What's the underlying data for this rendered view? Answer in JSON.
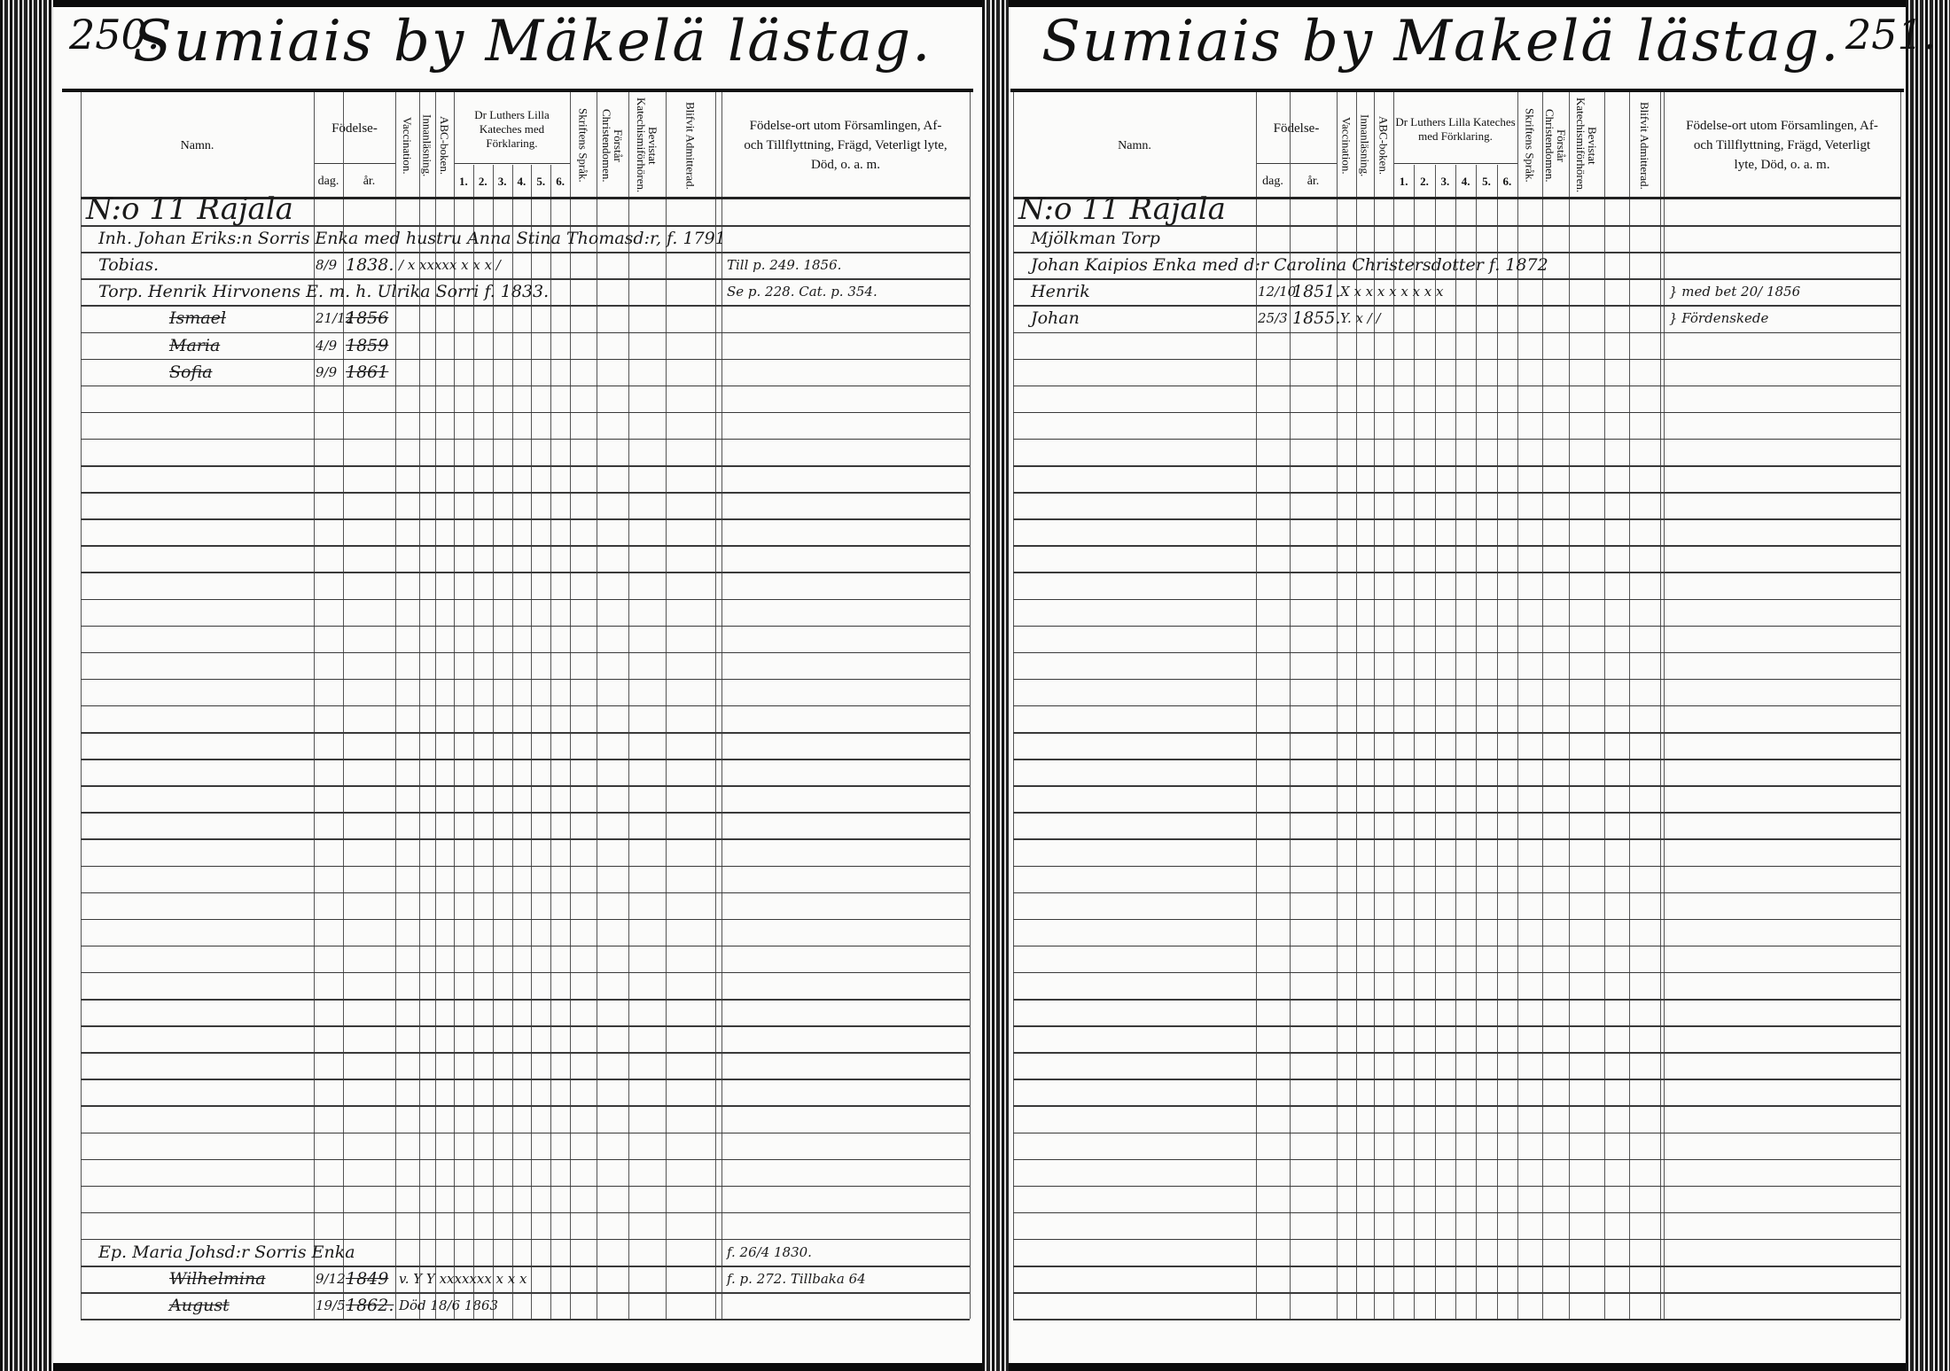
{
  "left_page": {
    "page_number": "250.",
    "title": "Sumiais by Mäkelä lästag.",
    "headers": {
      "namn": "Namn.",
      "fodelse": "Födelse-",
      "dag": "dag.",
      "ar": "år.",
      "vaccination": "Vaccination.",
      "innanlasning": "Innanläsning.",
      "abc": "ABC-boken.",
      "katekes": "Dr Luthers Lilla Kateches med Förklaring.",
      "kat_nums": [
        "1.",
        "2.",
        "3.",
        "4.",
        "5.",
        "6."
      ],
      "skriftens": "Skriftens Språk.",
      "forstar": "Förstår Christendomen.",
      "bevistat": "Bevistat Katechismiförhören.",
      "blifvit": "Blifvit Admitterad.",
      "fodelseort": "Födelse-ort utom Församlingen, Af- och Tillflyttning, Frägd, Veterligt lyte, Död, o. a. m."
    },
    "rows": [
      {
        "row": 0,
        "heading": "N:o 11 Rajala"
      },
      {
        "row": 1,
        "line": "Inh. Johan Eriks:n Sorris Enka med hustru Anna Stina Thomasd:r, f. 1791"
      },
      {
        "row": 2,
        "name": "Tobias.",
        "dag": "8/9",
        "ar": "1838.",
        "marks": "/ x xxxxx x x x /",
        "note": "Till p. 249. 1856."
      },
      {
        "row": 3,
        "line": "Torp. Henrik Hirvonens E. m. h. Ulrika Sorri f. 1833.",
        "note": "Se p. 228. Cat. p. 354."
      },
      {
        "row": 4,
        "name": "Ismael",
        "dag": "21/12",
        "ar": "1856",
        "struck": true
      },
      {
        "row": 5,
        "name": "Maria",
        "dag": "4/9",
        "ar": "1859",
        "struck": true
      },
      {
        "row": 6,
        "name": "Sofia",
        "dag": "9/9",
        "ar": "1861",
        "struck": true
      },
      {
        "row": 39,
        "line": "Ep. Maria Johsd:r Sorris Enka",
        "note": "f. 26/4 1830."
      },
      {
        "row": 40,
        "name": "Wilhelmina",
        "dag": "9/12",
        "ar": "1849",
        "marks": "v. Y Y xxxxxxx x x x",
        "note": "f. p. 272. Tillbaka 64",
        "struck": true
      },
      {
        "row": 41,
        "name": "August",
        "dag": "19/5",
        "ar": "1862.",
        "marks": "Död 18/6 1863",
        "struck": true
      }
    ]
  },
  "right_page": {
    "page_number": "251.",
    "title": "Sumiais by Makelä lästag.",
    "headers": {
      "namn": "Namn.",
      "fodelse": "Födelse-",
      "dag": "dag.",
      "ar": "år.",
      "vaccination": "Vaccination.",
      "innanlasning": "Innanläsning.",
      "abc": "ABC-boken.",
      "katekes": "Dr Luthers Lilla Kateches med Förklaring.",
      "kat_nums": [
        "1.",
        "2.",
        "3.",
        "4.",
        "5.",
        "6."
      ],
      "skriftens": "Skriftens Språk.",
      "forstar": "Förstår Christendomen.",
      "bevistat": "Bevistat Katechismiförhören.",
      "blifvit": "Blifvit Admitterad.",
      "fodelseort": "Födelse-ort utom Församlingen, Af- och Tillflyttning, Frägd, Veterligt lyte, Död, o. a. m."
    },
    "rows": [
      {
        "row": 0,
        "heading": "N:o 11 Rajala"
      },
      {
        "row": 1,
        "line": "Mjölkman Torp"
      },
      {
        "row": 2,
        "line": "Johan Kaipios Enka med d:r Carolina Christersdotter f. 1872"
      },
      {
        "row": 3,
        "name": "Henrik",
        "dag": "12/10",
        "ar": "1851.",
        "marks": "X x x x x x x x x",
        "note": "} med bet 20/ 1856"
      },
      {
        "row": 4,
        "name": "Johan",
        "dag": "25/3",
        "ar": "1855.",
        "marks": "Y. x / /",
        "note": "} Fördenskede"
      }
    ]
  }
}
